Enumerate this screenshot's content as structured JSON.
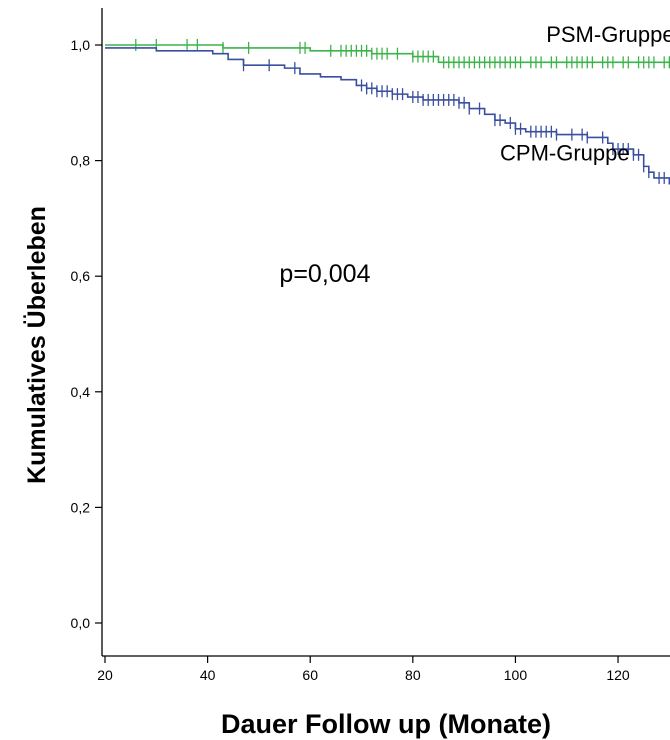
{
  "chart_data": {
    "type": "line",
    "subtype": "kaplan-meier-step",
    "xlabel": "Dauer Follow up (Monate)",
    "ylabel": "Kumulatives Überleben",
    "xlim": [
      20,
      135
    ],
    "ylim": [
      0.0,
      1.0
    ],
    "x_ticks": [
      20,
      40,
      60,
      80,
      100,
      120
    ],
    "x_tick_labels": [
      "20",
      "40",
      "60",
      "80",
      "100",
      "120"
    ],
    "y_ticks": [
      0.0,
      0.2,
      0.4,
      0.6,
      0.8,
      1.0
    ],
    "y_tick_labels": [
      "0,0",
      "0,2",
      "0,4",
      "0,6",
      "0,8",
      "1,0"
    ],
    "grid": false,
    "annotations": [
      {
        "text": "p=0,004",
        "x": 54,
        "y": 0.59
      },
      {
        "text": "PSM-Gruppe",
        "x": 106,
        "y": 1.005
      },
      {
        "text": "CPM-Gruppe",
        "x": 97,
        "y": 0.8
      }
    ],
    "series": [
      {
        "name": "PSM-Gruppe",
        "color": "#3cb44b",
        "steps": [
          [
            20,
            1.0
          ],
          [
            40,
            1.0
          ],
          [
            43,
            0.995
          ],
          [
            56,
            0.995
          ],
          [
            60,
            0.99
          ],
          [
            66,
            0.99
          ],
          [
            72,
            0.985
          ],
          [
            80,
            0.98
          ],
          [
            85,
            0.97
          ],
          [
            135,
            0.97
          ]
        ],
        "censored": [
          26,
          30,
          36,
          38,
          43,
          48,
          58,
          59,
          64,
          66,
          67,
          68,
          69,
          70,
          71,
          72,
          73,
          74,
          75,
          77,
          80,
          81,
          82,
          83,
          84,
          86,
          87,
          88,
          89,
          90,
          91,
          92,
          93,
          94,
          95,
          96,
          97,
          98,
          99,
          100,
          101,
          103,
          104,
          105,
          107,
          108,
          110,
          111,
          112,
          113,
          114,
          115,
          117,
          118,
          119,
          121,
          122,
          124,
          125,
          126,
          127,
          129,
          130,
          132
        ]
      },
      {
        "name": "CPM-Gruppe",
        "color": "#3a4fa0",
        "steps": [
          [
            20,
            0.995
          ],
          [
            30,
            0.99
          ],
          [
            41,
            0.985
          ],
          [
            44,
            0.975
          ],
          [
            47,
            0.965
          ],
          [
            55,
            0.96
          ],
          [
            58,
            0.95
          ],
          [
            62,
            0.945
          ],
          [
            66,
            0.94
          ],
          [
            69,
            0.93
          ],
          [
            71,
            0.925
          ],
          [
            73,
            0.92
          ],
          [
            76,
            0.915
          ],
          [
            79,
            0.91
          ],
          [
            82,
            0.905
          ],
          [
            89,
            0.9
          ],
          [
            91,
            0.89
          ],
          [
            94,
            0.88
          ],
          [
            96,
            0.87
          ],
          [
            98,
            0.865
          ],
          [
            100,
            0.855
          ],
          [
            102,
            0.85
          ],
          [
            108,
            0.845
          ],
          [
            114,
            0.84
          ],
          [
            118,
            0.83
          ],
          [
            119,
            0.82
          ],
          [
            123,
            0.81
          ],
          [
            125,
            0.79
          ],
          [
            126,
            0.78
          ],
          [
            127,
            0.77
          ],
          [
            130,
            0.76
          ],
          [
            133,
            0.75
          ],
          [
            135,
            0.74
          ]
        ],
        "censored": [
          47,
          52,
          57,
          70,
          71,
          72,
          73,
          74,
          75,
          76,
          77,
          78,
          80,
          81,
          82,
          83,
          84,
          85,
          86,
          87,
          88,
          89,
          90,
          91,
          93,
          96,
          97,
          99,
          100,
          101,
          103,
          104,
          105,
          106,
          107,
          108,
          111,
          113,
          114,
          117,
          119,
          120,
          121,
          122,
          123,
          124,
          125,
          126,
          128,
          129,
          131,
          132
        ]
      }
    ]
  }
}
